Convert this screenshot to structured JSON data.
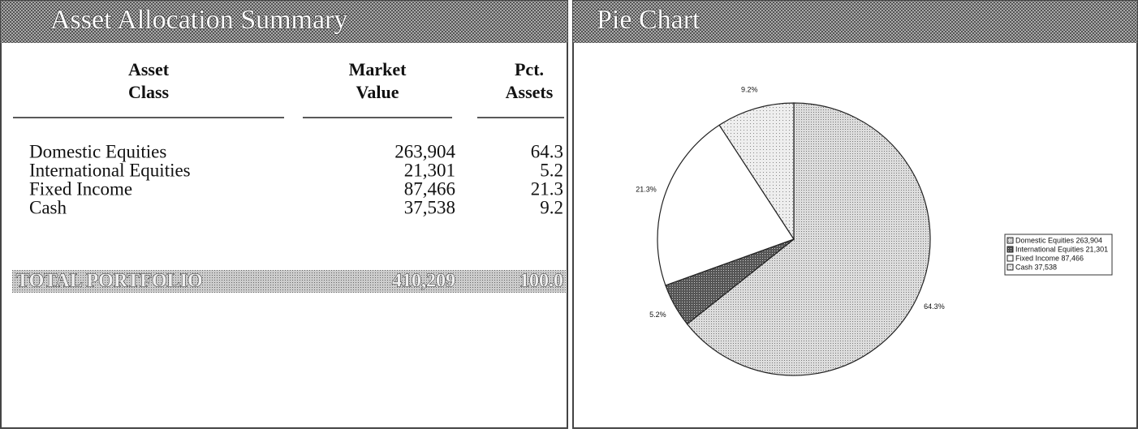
{
  "summary": {
    "title": "Asset Allocation Summary",
    "headers": [
      [
        "Asset",
        "Class"
      ],
      [
        "Market",
        "Value"
      ],
      [
        "Pct.",
        "Assets"
      ]
    ],
    "rows": [
      [
        "Domestic Equities",
        "263,904",
        "64.3"
      ],
      [
        "International Equities",
        "21,301",
        "5.2"
      ],
      [
        "Fixed Income",
        "87,466",
        "21.3"
      ],
      [
        "Cash",
        "37,538",
        "9.2"
      ]
    ],
    "total": [
      "TOTAL PORTFOLIO",
      "410,209",
      "100.0"
    ]
  },
  "chart_data": {
    "type": "pie",
    "title": "Pie Chart",
    "categories": [
      "Domestic Equities 263,904",
      "International Equities 21,301",
      "Fixed Income 87,466",
      "Cash 37,538"
    ],
    "values": [
      64.3,
      5.2,
      21.3,
      9.2
    ],
    "value_labels": [
      "64.3%",
      "5.2%",
      "21.3%",
      "9.2%"
    ],
    "patterns": [
      "light-dots",
      "dark-dots",
      "white",
      "fine-dots"
    ]
  }
}
